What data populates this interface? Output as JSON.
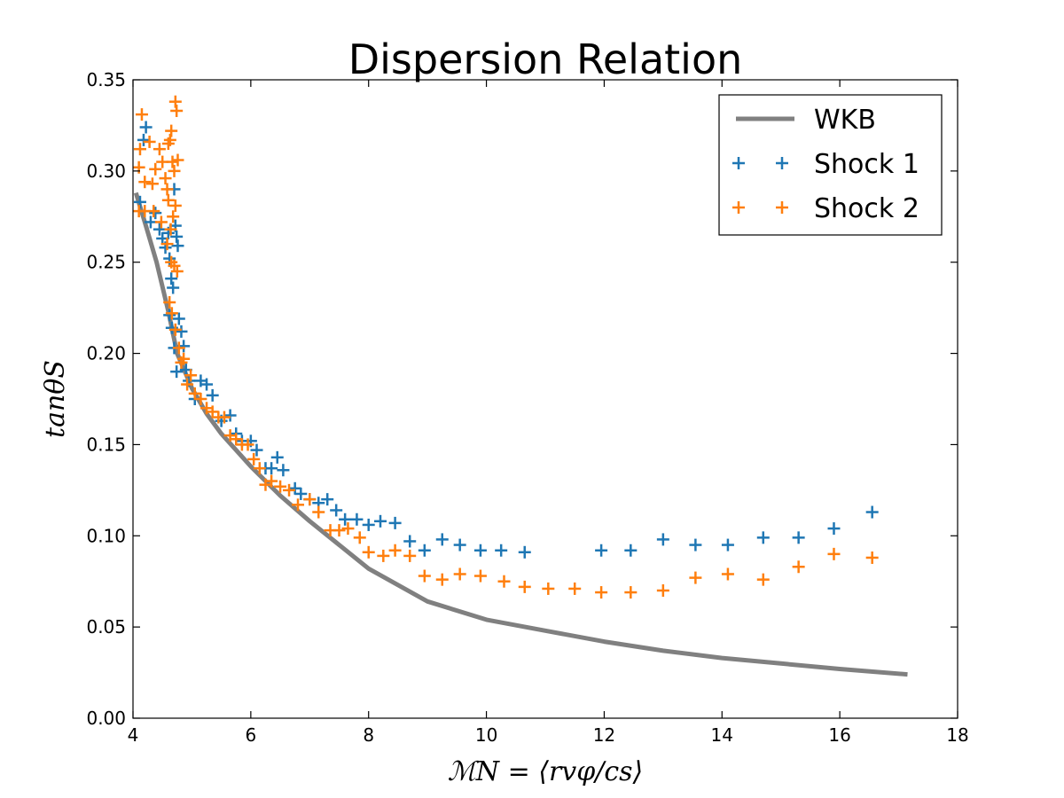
{
  "chart_data": {
    "type": "scatter",
    "title": "Dispersion Relation",
    "xlabel": "ℳN = ⟨rvφ/cs⟩",
    "ylabel": "tanθS",
    "xlim": [
      4,
      18
    ],
    "ylim": [
      0.0,
      0.35
    ],
    "xticks": [
      4,
      6,
      8,
      10,
      12,
      14,
      16,
      18
    ],
    "yticks": [
      0.0,
      0.05,
      0.1,
      0.15,
      0.2,
      0.25,
      0.3,
      0.35
    ],
    "grid": false,
    "legend_position": "top-right",
    "series": [
      {
        "name": "WKB",
        "kind": "line",
        "color": "#808080",
        "x": [
          4.05,
          4.2,
          4.4,
          4.6,
          4.75,
          5.0,
          5.25,
          5.5,
          6.0,
          6.5,
          7.0,
          8.0,
          9.0,
          10.0,
          11.0,
          12.0,
          13.0,
          14.0,
          15.0,
          16.0,
          17.15
        ],
        "y": [
          0.288,
          0.272,
          0.25,
          0.223,
          0.2,
          0.181,
          0.167,
          0.156,
          0.138,
          0.122,
          0.108,
          0.082,
          0.064,
          0.054,
          0.048,
          0.042,
          0.037,
          0.033,
          0.03,
          0.027,
          0.024
        ]
      },
      {
        "name": "Shock 1",
        "kind": "scatter",
        "marker": "+",
        "color": "#1f77b4",
        "x": [
          4.12,
          4.18,
          4.22,
          4.3,
          4.38,
          4.45,
          4.5,
          4.55,
          4.6,
          4.62,
          4.65,
          4.68,
          4.7,
          4.72,
          4.74,
          4.76,
          4.62,
          4.66,
          4.7,
          4.74,
          4.78,
          4.82,
          4.86,
          4.9,
          4.95,
          5.05,
          5.15,
          5.25,
          5.35,
          5.5,
          5.65,
          5.75,
          5.85,
          6.0,
          6.1,
          6.25,
          6.35,
          6.45,
          6.55,
          6.75,
          6.85,
          7.0,
          7.15,
          7.3,
          7.45,
          7.6,
          7.8,
          8.0,
          8.2,
          8.45,
          8.7,
          8.95,
          9.25,
          9.55,
          9.9,
          10.25,
          10.65,
          11.95,
          12.45,
          13.0,
          13.55,
          14.1,
          14.7,
          15.3,
          15.9,
          16.55
        ],
        "y": [
          0.283,
          0.317,
          0.324,
          0.272,
          0.277,
          0.268,
          0.263,
          0.258,
          0.266,
          0.252,
          0.241,
          0.236,
          0.29,
          0.27,
          0.264,
          0.259,
          0.221,
          0.214,
          0.203,
          0.19,
          0.219,
          0.212,
          0.204,
          0.191,
          0.185,
          0.175,
          0.185,
          0.183,
          0.177,
          0.163,
          0.166,
          0.156,
          0.152,
          0.152,
          0.147,
          0.137,
          0.137,
          0.143,
          0.136,
          0.126,
          0.123,
          0.12,
          0.118,
          0.12,
          0.114,
          0.109,
          0.109,
          0.106,
          0.108,
          0.107,
          0.097,
          0.092,
          0.098,
          0.095,
          0.092,
          0.092,
          0.091,
          0.092,
          0.092,
          0.098,
          0.095,
          0.095,
          0.099,
          0.099,
          0.104,
          0.113
        ]
      },
      {
        "name": "Shock 2",
        "kind": "scatter",
        "marker": "+",
        "color": "#ff7f0e",
        "x": [
          4.1,
          4.12,
          4.15,
          4.2,
          4.28,
          4.33,
          4.38,
          4.45,
          4.5,
          4.55,
          4.58,
          4.6,
          4.63,
          4.65,
          4.67,
          4.7,
          4.72,
          4.74,
          4.76,
          4.6,
          4.64,
          4.68,
          4.72,
          4.1,
          4.2,
          4.35,
          4.48,
          4.58,
          4.65,
          4.7,
          4.75,
          4.62,
          4.66,
          4.72,
          4.78,
          4.82,
          4.86,
          4.92,
          4.98,
          5.05,
          5.15,
          5.25,
          5.35,
          5.45,
          5.55,
          5.65,
          5.75,
          5.85,
          5.95,
          6.05,
          6.15,
          6.25,
          6.35,
          6.5,
          6.65,
          6.8,
          7.0,
          7.15,
          7.35,
          7.5,
          7.65,
          7.85,
          8.0,
          8.25,
          8.45,
          8.7,
          8.95,
          9.25,
          9.55,
          9.9,
          10.3,
          10.65,
          11.05,
          11.5,
          11.95,
          12.45,
          13.0,
          13.55,
          14.1,
          14.7,
          15.3,
          15.9,
          16.55
        ],
        "y": [
          0.302,
          0.312,
          0.331,
          0.294,
          0.316,
          0.293,
          0.301,
          0.312,
          0.305,
          0.296,
          0.29,
          0.315,
          0.317,
          0.322,
          0.305,
          0.3,
          0.338,
          0.333,
          0.306,
          0.284,
          0.268,
          0.275,
          0.281,
          0.278,
          0.278,
          0.278,
          0.272,
          0.26,
          0.25,
          0.248,
          0.245,
          0.228,
          0.222,
          0.213,
          0.203,
          0.195,
          0.197,
          0.183,
          0.188,
          0.178,
          0.175,
          0.17,
          0.168,
          0.165,
          0.165,
          0.155,
          0.153,
          0.15,
          0.15,
          0.142,
          0.137,
          0.128,
          0.13,
          0.127,
          0.125,
          0.117,
          0.12,
          0.113,
          0.103,
          0.103,
          0.104,
          0.099,
          0.091,
          0.089,
          0.092,
          0.089,
          0.078,
          0.076,
          0.079,
          0.078,
          0.075,
          0.072,
          0.071,
          0.071,
          0.069,
          0.069,
          0.07,
          0.077,
          0.079,
          0.076,
          0.083,
          0.09,
          0.088
        ]
      }
    ],
    "legend": [
      {
        "label": "WKB",
        "style": "line",
        "color": "#808080"
      },
      {
        "label": "Shock 1",
        "style": "plus",
        "color": "#1f77b4"
      },
      {
        "label": "Shock 2",
        "style": "plus",
        "color": "#ff7f0e"
      }
    ]
  }
}
